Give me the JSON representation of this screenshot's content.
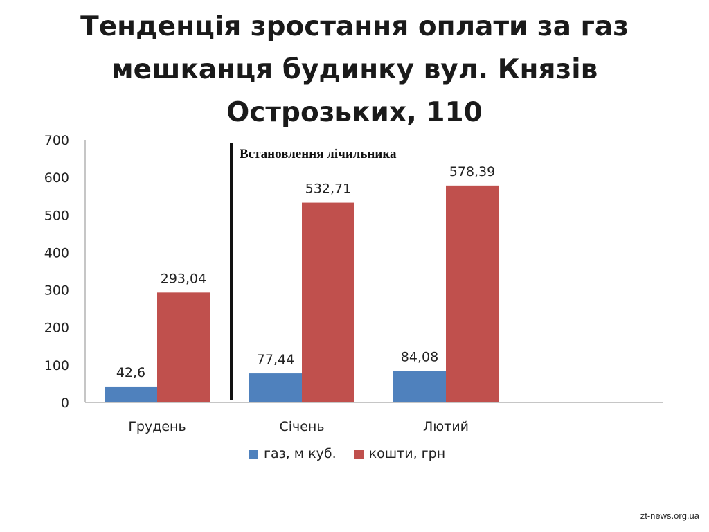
{
  "title_lines": [
    "Тенденція зростання оплати за газ",
    "мешканця будинку вул. Князів",
    "Острозьких, 110"
  ],
  "watermark": "zt-news.org.ua",
  "colors": {
    "gas": "#4f81bd",
    "money": "#c0504d",
    "axis": "#8c8c8c",
    "divider": "#111111"
  },
  "chart_data": {
    "type": "bar",
    "categories": [
      "Грудень",
      "Січень",
      "Лютий"
    ],
    "series": [
      {
        "name": "газ, м куб.",
        "values": [
          42.6,
          77.44,
          84.08
        ],
        "labels": [
          "42,6",
          "77,44",
          "84,08"
        ]
      },
      {
        "name": "кошти, грн",
        "values": [
          293.04,
          532.71,
          578.39
        ],
        "labels": [
          "293,04",
          "532,71",
          "578,39"
        ]
      }
    ],
    "y_ticks": [
      "0",
      "100",
      "200",
      "300",
      "400",
      "500",
      "600",
      "700"
    ],
    "ylim": [
      0,
      700
    ],
    "annotation": "Встановлення лічильника",
    "legend_position": "bottom",
    "grid": false
  }
}
